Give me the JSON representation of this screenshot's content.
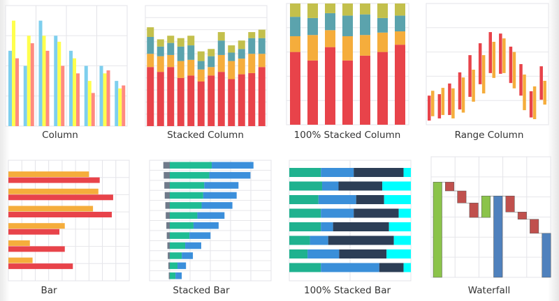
{
  "chart_data": [
    {
      "type": "bar",
      "title": "Column",
      "orientation": "vertical",
      "ylim": [
        0,
        4
      ],
      "grid": true,
      "colors": [
        "#7ecfee",
        "#ffff4d",
        "#ff8a80"
      ],
      "series": [
        {
          "values": [
            2.5,
            2.0,
            3.5,
            3.0,
            2.5,
            2.0,
            2.0,
            1.5
          ]
        },
        {
          "values": [
            3.5,
            3.0,
            3.0,
            2.8,
            2.25,
            1.5,
            1.75,
            1.25
          ]
        },
        {
          "values": [
            2.25,
            2.75,
            2.5,
            2.0,
            1.75,
            1.1,
            1.85,
            1.35
          ]
        }
      ]
    },
    {
      "type": "bar",
      "title": "Stacked Column",
      "orientation": "vertical",
      "stacked": true,
      "ylim": [
        0,
        10
      ],
      "grid": true,
      "colors": [
        "#e8434a",
        "#f5ad3c",
        "#5ba3ad",
        "#c3c04c"
      ],
      "series": [
        {
          "values": [
            4.9,
            4.5,
            4.9,
            4.0,
            4.2,
            3.7,
            4.2,
            4.5,
            3.9,
            4.3,
            4.4,
            4.9
          ]
        },
        {
          "values": [
            1.1,
            1.3,
            1.0,
            1.4,
            1.3,
            1.0,
            0.7,
            1.4,
            1.5,
            1.3,
            1.6,
            1.1
          ]
        },
        {
          "values": [
            1.4,
            0.8,
            1.0,
            1.2,
            1.2,
            0.7,
            0.9,
            1.2,
            0.7,
            0.8,
            1.3,
            1.3
          ]
        },
        {
          "values": [
            0.8,
            0.6,
            0.6,
            0.7,
            0.8,
            0.8,
            0.6,
            0.7,
            0.6,
            0.7,
            0.5,
            0.7
          ]
        }
      ]
    },
    {
      "type": "bar",
      "title": "100% Stacked Column",
      "orientation": "vertical",
      "stacked": "percent",
      "ylim": [
        0,
        100
      ],
      "grid": true,
      "colors": [
        "#e8434a",
        "#f5ad3c",
        "#5ba3ad",
        "#c3c04c"
      ],
      "series": [
        {
          "values": [
            60,
            53,
            64,
            53,
            57,
            60,
            66
          ]
        },
        {
          "values": [
            13,
            21,
            14,
            20,
            17,
            16,
            11
          ]
        },
        {
          "values": [
            16,
            14,
            14,
            17,
            17,
            12,
            13
          ]
        },
        {
          "values": [
            11,
            12,
            8,
            10,
            9,
            12,
            10
          ]
        }
      ]
    },
    {
      "type": "range-bar",
      "title": "Range Column",
      "ylim": [
        0,
        5
      ],
      "grid": true,
      "colors": [
        "#e8434a",
        "#f5ad3c"
      ],
      "series": [
        {
          "ranges": [
            [
              0.17,
              1.2
            ],
            [
              0.26,
              1.26
            ],
            [
              0.4,
              1.7
            ],
            [
              0.63,
              2.16
            ],
            [
              1.15,
              2.87
            ],
            [
              1.67,
              3.36
            ],
            [
              2.13,
              3.82
            ],
            [
              2.1,
              3.76
            ],
            [
              1.72,
              3.22
            ],
            [
              1.2,
              2.5
            ],
            [
              0.3,
              1.38
            ],
            [
              1.03,
              2.41
            ]
          ]
        },
        {
          "ranges": [
            [
              0.35,
              1.4
            ],
            [
              0.4,
              1.52
            ],
            [
              0.26,
              1.5
            ],
            [
              0.5,
              1.95
            ],
            [
              0.95,
              2.27
            ],
            [
              1.29,
              2.87
            ],
            [
              1.93,
              3.42
            ],
            [
              2.13,
              3.56
            ],
            [
              1.5,
              3.0
            ],
            [
              0.6,
              2.07
            ],
            [
              0.23,
              1.58
            ],
            [
              0.83,
              1.81
            ]
          ]
        }
      ]
    },
    {
      "type": "bar",
      "title": "Bar",
      "orientation": "horizontal",
      "xlim": [
        0,
        9
      ],
      "grid": true,
      "colors": [
        "#f5ad3c",
        "#e8434a"
      ],
      "series": [
        {
          "values": [
            6.0,
            6.7,
            6.3,
            4.2,
            1.6,
            1.8
          ]
        },
        {
          "values": [
            6.8,
            7.8,
            7.7,
            3.8,
            4.2,
            4.8
          ]
        }
      ]
    },
    {
      "type": "bar",
      "title": "Stacked Bar",
      "orientation": "horizontal",
      "stacked": true,
      "xlim": [
        -1,
        5
      ],
      "grid": true,
      "colors": [
        "#6f7a8a",
        "#1fbc93",
        "#3b8fdb"
      ],
      "series": [
        {
          "values": [
            -0.32,
            -0.3,
            -0.27,
            -0.25,
            -0.22,
            -0.2,
            -0.17,
            -0.15,
            -0.12,
            -0.1,
            -0.07,
            -0.05
          ]
        },
        {
          "values": [
            2.07,
            1.95,
            1.7,
            1.65,
            1.57,
            1.36,
            1.17,
            0.97,
            0.76,
            0.59,
            0.38,
            0.28
          ]
        },
        {
          "values": [
            2.06,
            2.03,
            1.69,
            1.65,
            1.52,
            1.34,
            1.24,
            1.04,
            0.79,
            0.55,
            0.42,
            0.31
          ]
        }
      ]
    },
    {
      "type": "bar",
      "title": "100% Stacked Bar",
      "orientation": "horizontal",
      "stacked": "percent",
      "xlim": [
        0,
        100
      ],
      "grid": true,
      "colors": [
        "#1fb28f",
        "#3a8fd9",
        "#2c3e56",
        "#00ffff"
      ],
      "series": [
        {
          "values": [
            26,
            27,
            24,
            26,
            26,
            17,
            15,
            26
          ]
        },
        {
          "values": [
            27,
            13.5,
            31,
            27,
            10,
            15,
            26,
            48
          ]
        },
        {
          "values": [
            41,
            36,
            23,
            37,
            46,
            54,
            39,
            20
          ]
        },
        {
          "values": [
            6,
            23.5,
            22,
            10,
            18,
            14,
            20,
            6
          ]
        }
      ]
    },
    {
      "type": "waterfall",
      "title": "Waterfall",
      "ylim": [
        0,
        6
      ],
      "grid": true,
      "colors": {
        "increase": "#8bc34a",
        "decrease": "#c0504d",
        "total": "#4f81bd"
      },
      "steps": [
        {
          "kind": "increase",
          "value": 4.74
        },
        {
          "kind": "decrease",
          "value": -0.44
        },
        {
          "kind": "decrease",
          "value": -0.6
        },
        {
          "kind": "decrease",
          "value": -0.72
        },
        {
          "kind": "increase",
          "value": 1.07
        },
        {
          "kind": "total",
          "value": 4.05
        },
        {
          "kind": "decrease",
          "value": -0.8
        },
        {
          "kind": "decrease",
          "value": -0.36
        },
        {
          "kind": "decrease",
          "value": -0.7
        },
        {
          "kind": "total",
          "value": 2.19
        }
      ]
    }
  ]
}
